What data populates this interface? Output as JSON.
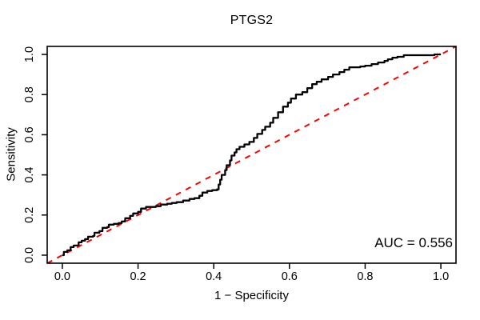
{
  "chart_data": {
    "type": "line",
    "subtype": "roc-curve",
    "title": "PTGS2",
    "xlabel": "1 − Specificity",
    "ylabel": "Sensitivity",
    "annotation": "AUC = 0.556",
    "auc_value": 0.556,
    "x_ticks": [
      "0.0",
      "0.2",
      "0.4",
      "0.6",
      "0.8",
      "1.0"
    ],
    "y_ticks": [
      "0.0",
      "0.2",
      "0.4",
      "0.6",
      "0.8",
      "1.0"
    ],
    "xlim": [
      0,
      1
    ],
    "ylim": [
      0,
      1
    ],
    "axis_padding_frac": 0.04,
    "grid": "off",
    "legend": "none",
    "colors": {
      "curve": "#000000",
      "diagonal": "#ff0000",
      "axis": "#000000",
      "text": "#000000",
      "background": "#ffffff"
    },
    "diagonal": {
      "style": "dashed",
      "from": [
        0,
        0
      ],
      "to": [
        1,
        1
      ]
    },
    "roc_points": [
      [
        0.0,
        0.0
      ],
      [
        0.004,
        0.016
      ],
      [
        0.013,
        0.024
      ],
      [
        0.022,
        0.04
      ],
      [
        0.03,
        0.048
      ],
      [
        0.043,
        0.064
      ],
      [
        0.051,
        0.072
      ],
      [
        0.06,
        0.08
      ],
      [
        0.068,
        0.092
      ],
      [
        0.081,
        0.096
      ],
      [
        0.085,
        0.112
      ],
      [
        0.098,
        0.12
      ],
      [
        0.106,
        0.136
      ],
      [
        0.119,
        0.14
      ],
      [
        0.123,
        0.152
      ],
      [
        0.136,
        0.156
      ],
      [
        0.149,
        0.16
      ],
      [
        0.157,
        0.168
      ],
      [
        0.166,
        0.184
      ],
      [
        0.179,
        0.196
      ],
      [
        0.187,
        0.208
      ],
      [
        0.2,
        0.216
      ],
      [
        0.208,
        0.232
      ],
      [
        0.221,
        0.24
      ],
      [
        0.234,
        0.24
      ],
      [
        0.247,
        0.244
      ],
      [
        0.26,
        0.252
      ],
      [
        0.277,
        0.256
      ],
      [
        0.289,
        0.26
      ],
      [
        0.302,
        0.264
      ],
      [
        0.319,
        0.272
      ],
      [
        0.336,
        0.28
      ],
      [
        0.349,
        0.284
      ],
      [
        0.362,
        0.296
      ],
      [
        0.37,
        0.312
      ],
      [
        0.383,
        0.32
      ],
      [
        0.396,
        0.324
      ],
      [
        0.409,
        0.328
      ],
      [
        0.413,
        0.352
      ],
      [
        0.417,
        0.376
      ],
      [
        0.421,
        0.4
      ],
      [
        0.43,
        0.424
      ],
      [
        0.434,
        0.448
      ],
      [
        0.443,
        0.472
      ],
      [
        0.447,
        0.496
      ],
      [
        0.455,
        0.512
      ],
      [
        0.46,
        0.528
      ],
      [
        0.468,
        0.54
      ],
      [
        0.481,
        0.552
      ],
      [
        0.494,
        0.564
      ],
      [
        0.506,
        0.584
      ],
      [
        0.515,
        0.604
      ],
      [
        0.528,
        0.624
      ],
      [
        0.536,
        0.64
      ],
      [
        0.549,
        0.66
      ],
      [
        0.557,
        0.684
      ],
      [
        0.57,
        0.712
      ],
      [
        0.583,
        0.74
      ],
      [
        0.596,
        0.76
      ],
      [
        0.604,
        0.78
      ],
      [
        0.617,
        0.8
      ],
      [
        0.634,
        0.812
      ],
      [
        0.647,
        0.832
      ],
      [
        0.66,
        0.852
      ],
      [
        0.672,
        0.864
      ],
      [
        0.685,
        0.876
      ],
      [
        0.702,
        0.888
      ],
      [
        0.715,
        0.9
      ],
      [
        0.732,
        0.912
      ],
      [
        0.745,
        0.924
      ],
      [
        0.758,
        0.936
      ],
      [
        0.787,
        0.94
      ],
      [
        0.8,
        0.944
      ],
      [
        0.817,
        0.952
      ],
      [
        0.834,
        0.96
      ],
      [
        0.851,
        0.968
      ],
      [
        0.86,
        0.976
      ],
      [
        0.872,
        0.984
      ],
      [
        0.885,
        0.988
      ],
      [
        0.902,
        0.996
      ],
      [
        0.97,
        0.996
      ],
      [
        0.983,
        1.0
      ],
      [
        1.0,
        1.0
      ]
    ]
  }
}
